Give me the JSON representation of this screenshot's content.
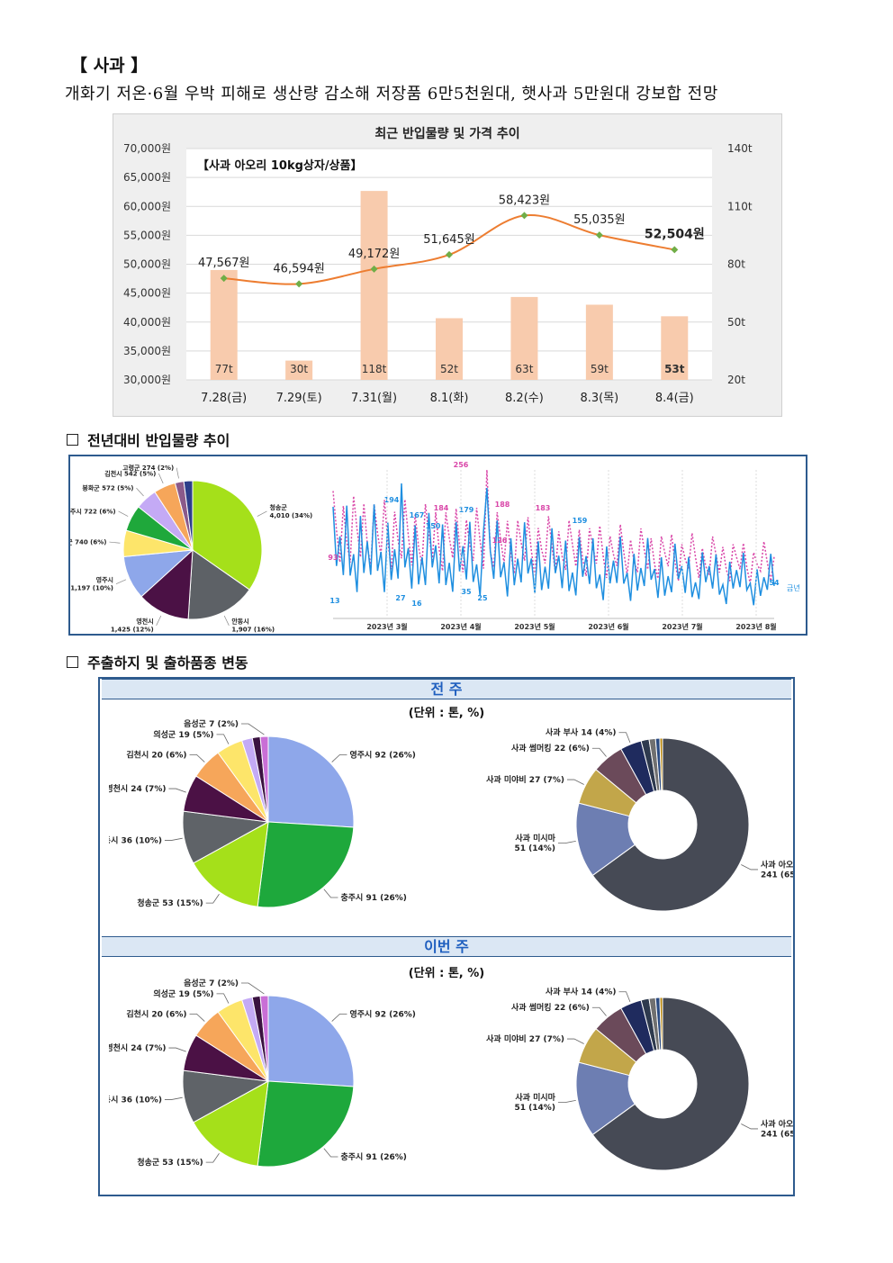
{
  "header": {
    "title": "【 사과 】",
    "subtitle": "개화기 저온·6월 우박 피해로 생산량 감소해 저장품 6만5천원대, 햇사과 5만원대 강보합 전망"
  },
  "price_chart": {
    "chart_data": {
      "type": "bar+line",
      "title": "최근 반입물량 및 가격 추이",
      "annotation": "【사과 아오리 10kg상자/상품】",
      "categories": [
        "7.28(금)",
        "7.29(토)",
        "7.31(월)",
        "8.1(화)",
        "8.2(수)",
        "8.3(목)",
        "8.4(금)"
      ],
      "series": [
        {
          "name": "반입물량",
          "axis": "right",
          "values": [
            77,
            30,
            118,
            52,
            63,
            59,
            53
          ],
          "labels": [
            "77t",
            "30t",
            "118t",
            "52t",
            "63t",
            "59t",
            "53t"
          ]
        },
        {
          "name": "가격",
          "axis": "left",
          "values": [
            47567,
            46594,
            49172,
            51645,
            58423,
            55035,
            52504
          ],
          "labels": [
            "47,567원",
            "46,594원",
            "49,172원",
            "51,645원",
            "58,423원",
            "55,035원",
            "52,504원"
          ]
        }
      ],
      "left_axis": {
        "ylim": [
          30000,
          70000
        ],
        "ticks": [
          "30,000원",
          "35,000원",
          "40,000원",
          "45,000원",
          "50,000원",
          "55,000원",
          "60,000원",
          "65,000원",
          "70,000원"
        ]
      },
      "right_axis": {
        "ylim": [
          20,
          140
        ],
        "ticks": [
          "20t",
          "50t",
          "80t",
          "110t",
          "140t"
        ]
      },
      "colors": {
        "bar": "#f8cbad",
        "line": "#ed7d31",
        "marker": "#70ad47"
      }
    }
  },
  "section1": {
    "label": "전년대비 반입물량 추이"
  },
  "volume_pie": {
    "chart_data": {
      "type": "pie",
      "slices": [
        {
          "label": "청송군 4,010 (34%)",
          "value": 34,
          "color": "#a5e01a"
        },
        {
          "label": "안동시 1,907 (16%)",
          "value": 16,
          "color": "#5d6166"
        },
        {
          "label": "영천시 1,425 (12%)",
          "value": 12,
          "color": "#4b1145"
        },
        {
          "label": "영주시 1,197 (10%)",
          "value": 10,
          "color": "#8ea7ea"
        },
        {
          "label": "의성군 740 (6%)",
          "value": 6,
          "color": "#fde56a"
        },
        {
          "label": "충주시 722 (6%)",
          "value": 6,
          "color": "#1fa83b"
        },
        {
          "label": "봉화군 572 (5%)",
          "value": 5,
          "color": "#c4aaf5"
        },
        {
          "label": "김천시 542 (5%)",
          "value": 5,
          "color": "#f6a65a"
        },
        {
          "label": "고령군 274 (2%)",
          "value": 2,
          "color": "#8b5a8a"
        },
        {
          "label": "",
          "value": 2,
          "color": "#2d3e8a"
        }
      ]
    }
  },
  "volume_trend": {
    "chart_data": {
      "type": "line",
      "x_ticks": [
        "2023년 3월",
        "2023년 4월",
        "2023년 5월",
        "2023년 6월",
        "2023년 7월",
        "2023년 8월"
      ],
      "series": [
        {
          "name": "금년",
          "color": "#1f8fe0"
        },
        {
          "name": "",
          "color": "#d946a8"
        }
      ],
      "point_labels": [
        "93",
        "13",
        "194",
        "167",
        "150",
        "179",
        "256",
        "184",
        "188",
        "183",
        "159",
        "126",
        "54",
        "27",
        "16",
        "35",
        "25"
      ]
    }
  },
  "section2": {
    "label": "주출하지 및 출하품종 변동"
  },
  "panels": [
    {
      "head": "전 주",
      "unit": "(단위 : 톤, %)",
      "region_pie": {
        "chart_data": {
          "type": "pie",
          "slices": [
            {
              "label": "영주시 92 (26%)",
              "value": 26,
              "color": "#8ea7ea"
            },
            {
              "label": "충주시 91 (26%)",
              "value": 26,
              "color": "#1ea83c"
            },
            {
              "label": "청송군 53 (15%)",
              "value": 15,
              "color": "#a5e01a"
            },
            {
              "label": "안동시 36 (10%)",
              "value": 10,
              "color": "#5f6368"
            },
            {
              "label": "영천시 24 (7%)",
              "value": 7,
              "color": "#4b1145"
            },
            {
              "label": "김천시 20 (6%)",
              "value": 6,
              "color": "#f6a65a"
            },
            {
              "label": "의성군 19 (5%)",
              "value": 5,
              "color": "#fde56a"
            },
            {
              "label": "",
              "value": 2,
              "color": "#c4aaf5"
            },
            {
              "label": "",
              "value": 1.5,
              "color": "#3a1240"
            },
            {
              "label": "음성군 7 (2%)",
              "value": 1.5,
              "color": "#c96fd6"
            }
          ]
        }
      },
      "variety_donut": {
        "chart_data": {
          "type": "pie",
          "slices": [
            {
              "label": "사과 아오리 241 (65%)",
              "value": 65,
              "color": "#464a55"
            },
            {
              "label": "사과 미시마 51 (14%)",
              "value": 14,
              "color": "#6d7eb2"
            },
            {
              "label": "사과 미야비 27 (7%)",
              "value": 7,
              "color": "#c2a64a"
            },
            {
              "label": "사과 썸머킹 22 (6%)",
              "value": 6,
              "color": "#6b4a5a"
            },
            {
              "label": "사과 부사 14 (4%)",
              "value": 4,
              "color": "#1f2b5e"
            },
            {
              "label": "",
              "value": 1.5,
              "color": "#2e3a4e"
            },
            {
              "label": "",
              "value": 1.2,
              "color": "#707070"
            },
            {
              "label": "",
              "value": 0.8,
              "color": "#2a4a80"
            },
            {
              "label": "",
              "value": 0.5,
              "color": "#b8860b"
            }
          ]
        }
      }
    },
    {
      "head": "이번 주",
      "unit": "(단위 : 톤, %)",
      "region_pie": {
        "chart_data": {
          "type": "pie",
          "slices": [
            {
              "label": "영주시 92 (26%)",
              "value": 26,
              "color": "#8ea7ea"
            },
            {
              "label": "충주시 91 (26%)",
              "value": 26,
              "color": "#1ea83c"
            },
            {
              "label": "청송군 53 (15%)",
              "value": 15,
              "color": "#a5e01a"
            },
            {
              "label": "안동시 36 (10%)",
              "value": 10,
              "color": "#5f6368"
            },
            {
              "label": "영천시 24 (7%)",
              "value": 7,
              "color": "#4b1145"
            },
            {
              "label": "김천시 20 (6%)",
              "value": 6,
              "color": "#f6a65a"
            },
            {
              "label": "의성군 19 (5%)",
              "value": 5,
              "color": "#fde56a"
            },
            {
              "label": "",
              "value": 2,
              "color": "#c4aaf5"
            },
            {
              "label": "",
              "value": 1.5,
              "color": "#3a1240"
            },
            {
              "label": "음성군 7 (2%)",
              "value": 1.5,
              "color": "#c96fd6"
            }
          ]
        }
      },
      "variety_donut": {
        "chart_data": {
          "type": "pie",
          "slices": [
            {
              "label": "사과 아오리 241 (65%)",
              "value": 65,
              "color": "#464a55"
            },
            {
              "label": "사과 미시마 51 (14%)",
              "value": 14,
              "color": "#6d7eb2"
            },
            {
              "label": "사과 미야비 27 (7%)",
              "value": 7,
              "color": "#c2a64a"
            },
            {
              "label": "사과 썸머킹 22 (6%)",
              "value": 6,
              "color": "#6b4a5a"
            },
            {
              "label": "사과 부사 14 (4%)",
              "value": 4,
              "color": "#1f2b5e"
            },
            {
              "label": "",
              "value": 1.5,
              "color": "#2e3a4e"
            },
            {
              "label": "",
              "value": 1.2,
              "color": "#707070"
            },
            {
              "label": "",
              "value": 0.8,
              "color": "#2a4a80"
            },
            {
              "label": "",
              "value": 0.5,
              "color": "#b8860b"
            }
          ]
        }
      }
    }
  ]
}
